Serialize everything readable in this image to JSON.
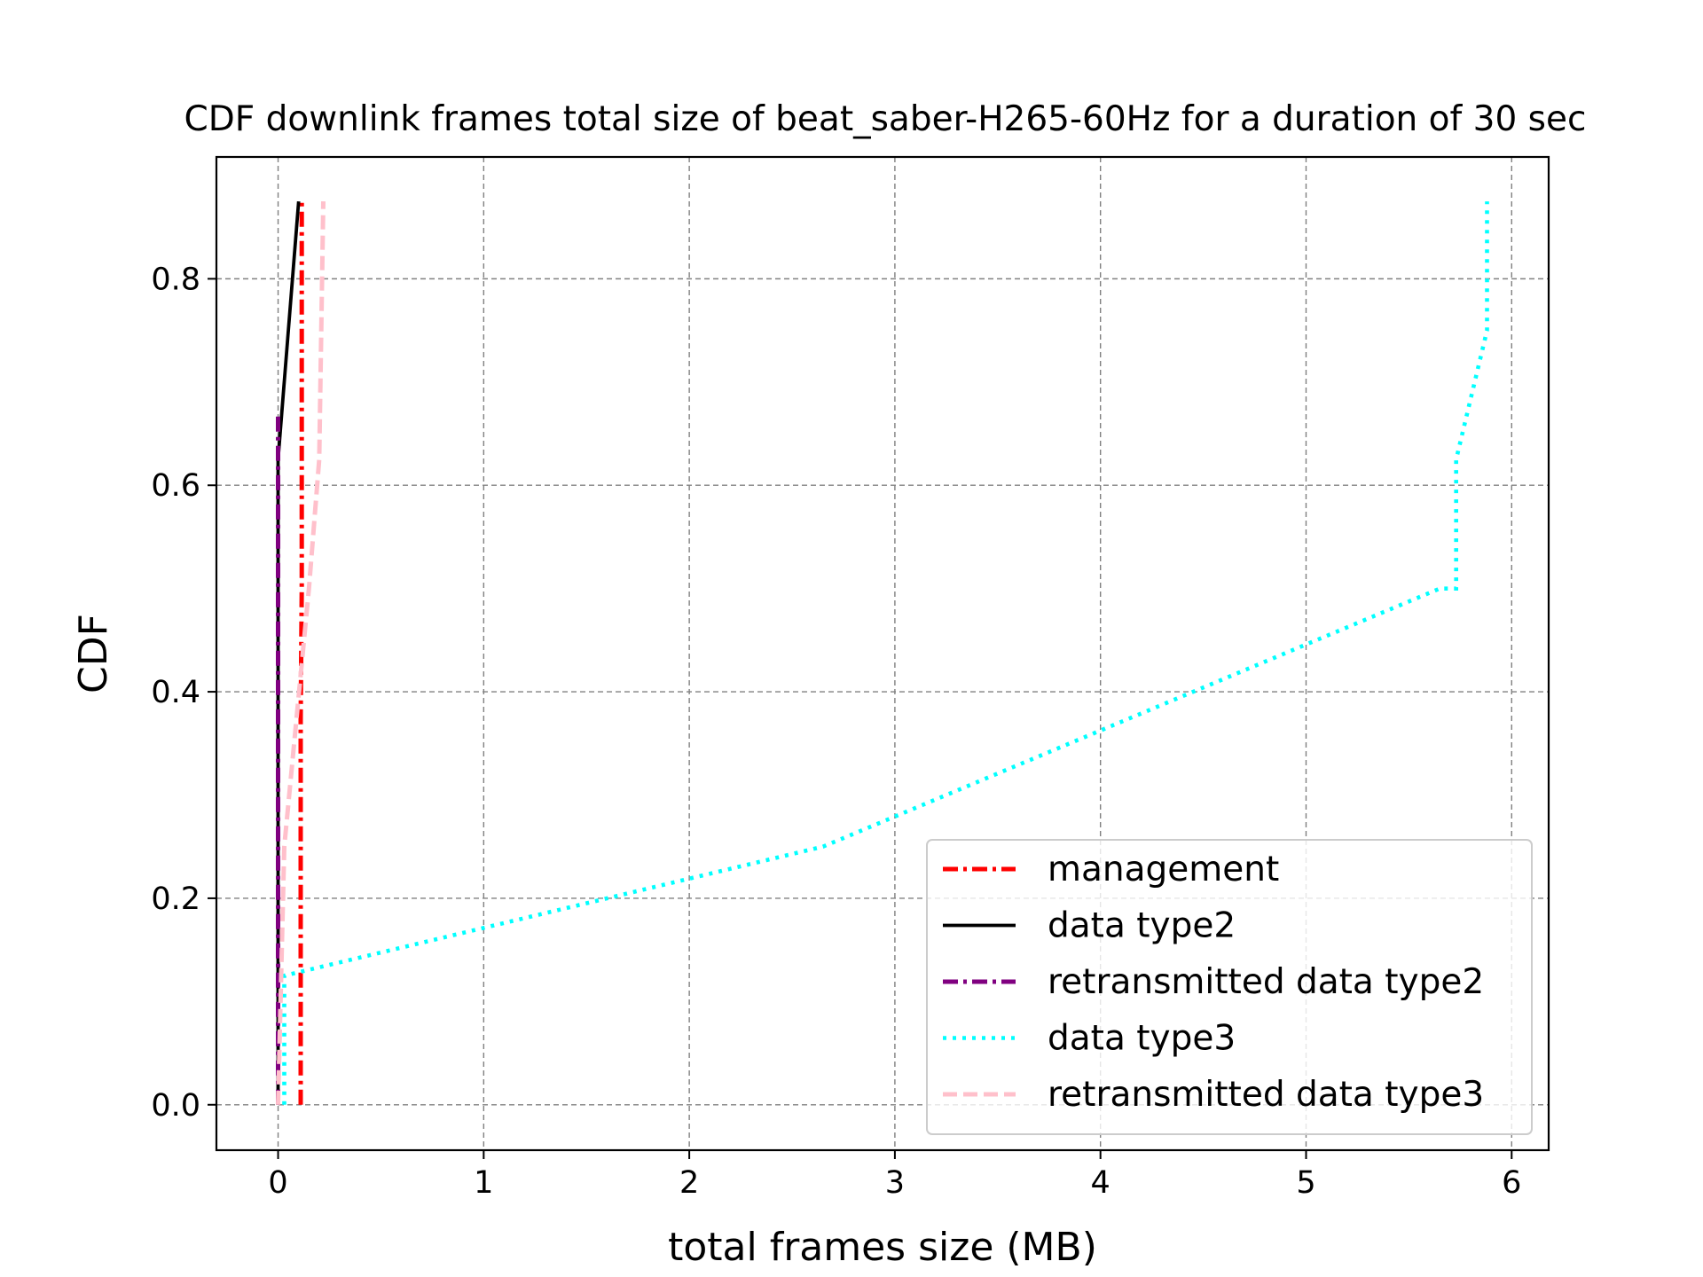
{
  "chart_data": {
    "type": "line",
    "title": "CDF downlink frames total size of beat_saber-H265-60Hz for a duration of 30 sec",
    "xlabel": "total frames size (MB)",
    "ylabel": "CDF",
    "xlim": [
      -0.3,
      6.18
    ],
    "ylim": [
      -0.044,
      0.918
    ],
    "xticks": [
      0,
      1,
      2,
      3,
      4,
      5,
      6
    ],
    "xtick_labels": [
      "0",
      "1",
      "2",
      "3",
      "4",
      "5",
      "6"
    ],
    "yticks": [
      0.0,
      0.2,
      0.4,
      0.6,
      0.8
    ],
    "ytick_labels": [
      "0.0",
      "0.2",
      "0.4",
      "0.6",
      "0.8"
    ],
    "grid": true,
    "legend_position": "lower-right",
    "series": [
      {
        "name": "management",
        "color": "#ff0000",
        "style": "dashdot",
        "points": [
          [
            0.11,
            0.0
          ],
          [
            0.11,
            0.375
          ],
          [
            0.115,
            0.5
          ],
          [
            0.115,
            0.75
          ],
          [
            0.115,
            0.875
          ]
        ]
      },
      {
        "name": "data type2",
        "color": "#000000",
        "style": "solid",
        "points": [
          [
            0.0,
            0.0
          ],
          [
            0.0,
            0.625
          ],
          [
            0.1,
            0.875
          ]
        ]
      },
      {
        "name": "retransmitted data type2",
        "color": "#800080",
        "style": "dashdot",
        "points": [
          [
            0.0,
            0.0
          ],
          [
            0.0,
            0.667
          ]
        ]
      },
      {
        "name": "data type3",
        "color": "#00ffff",
        "style": "dotted",
        "points": [
          [
            0.03,
            0.0
          ],
          [
            0.03,
            0.125
          ],
          [
            2.65,
            0.25
          ],
          [
            5.65,
            0.5
          ],
          [
            5.73,
            0.5
          ],
          [
            5.73,
            0.625
          ],
          [
            5.88,
            0.75
          ],
          [
            5.88,
            0.875
          ]
        ]
      },
      {
        "name": "retransmitted data type3",
        "color": "#ffc0cb",
        "style": "dashed",
        "points": [
          [
            0.0,
            0.0
          ],
          [
            0.03,
            0.25
          ],
          [
            0.15,
            0.5
          ],
          [
            0.2,
            0.625
          ],
          [
            0.22,
            0.875
          ]
        ]
      }
    ]
  }
}
